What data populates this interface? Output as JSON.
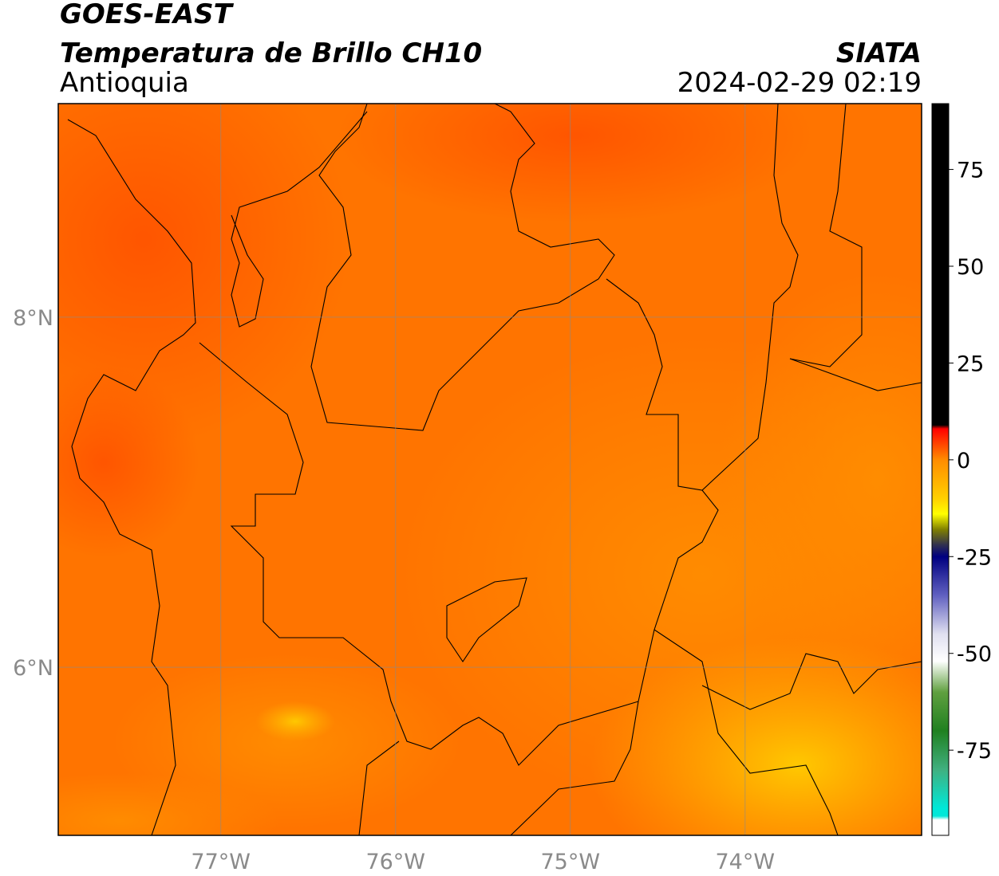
{
  "chart_data": {
    "type": "map",
    "title": "GOES-EAST",
    "subtitle": "Temperatura de Brillo CH10",
    "region": "Antioquia",
    "source": "SIATA",
    "timestamp": "2024-02-29 02:19",
    "xlim": [
      -77.93,
      -72.99
    ],
    "ylim": [
      5.04,
      9.22
    ],
    "xticks": [
      {
        "value": -77,
        "label": "77°W"
      },
      {
        "value": -76,
        "label": "76°W"
      },
      {
        "value": -75,
        "label": "75°W"
      },
      {
        "value": -74,
        "label": "74°W"
      }
    ],
    "yticks": [
      {
        "value": 6,
        "label": "6°N"
      },
      {
        "value": 8,
        "label": "8°N"
      }
    ],
    "grid": true,
    "colorbar": {
      "lim": [
        -97,
        92
      ],
      "ticks": [
        -75,
        -50,
        -25,
        0,
        25,
        50,
        75
      ],
      "stops": [
        {
          "value": 92,
          "color": "#000000"
        },
        {
          "value": 9,
          "color": "#000000"
        },
        {
          "value": 8,
          "color": "#ff0000"
        },
        {
          "value": 0,
          "color": "#ff8c00"
        },
        {
          "value": -10,
          "color": "#ffd000"
        },
        {
          "value": -14,
          "color": "#ffff00"
        },
        {
          "value": -18,
          "color": "#808000"
        },
        {
          "value": -22,
          "color": "#303050"
        },
        {
          "value": -25,
          "color": "#000080"
        },
        {
          "value": -35,
          "color": "#6060c0"
        },
        {
          "value": -45,
          "color": "#e0e0f0"
        },
        {
          "value": -52,
          "color": "#ffffff"
        },
        {
          "value": -60,
          "color": "#60a040"
        },
        {
          "value": -70,
          "color": "#208020"
        },
        {
          "value": -80,
          "color": "#40b080"
        },
        {
          "value": -90,
          "color": "#00e8d8"
        },
        {
          "value": -92,
          "color": "#00e8d8"
        },
        {
          "value": -93,
          "color": "#ffffff"
        },
        {
          "value": -97,
          "color": "#ffffff"
        }
      ]
    }
  }
}
